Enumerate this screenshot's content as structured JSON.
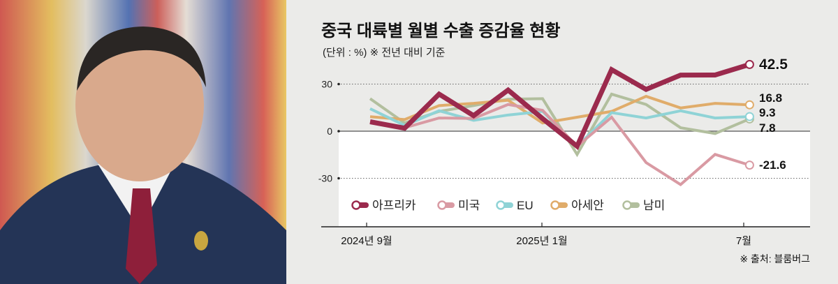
{
  "photo": {
    "alt": ""
  },
  "chart_data": {
    "type": "line",
    "title": "중국 대륙별 월별 수출 증감율 현황",
    "subtitle": "(단위 : %)  ※ 전년 대비 기준",
    "source": "※ 출처: 블룸버그",
    "x_tick_labels": [
      "2024년 9월",
      "2025년 1월",
      "7월"
    ],
    "y_ticks": [
      30,
      0,
      -30
    ],
    "y_tick_labels": [
      "30",
      "0",
      "-30"
    ],
    "ylim": [
      -40,
      45
    ],
    "grid": "dotted at ±30",
    "legend_position": "bottom-left",
    "series": [
      {
        "name": "아프리카",
        "color": "#9b2a4d",
        "end_label": "42.5",
        "values": [
          6,
          1.9,
          23.6,
          9.9,
          26.2,
          8,
          -9.6,
          39.2,
          26.6,
          35.7,
          35.8,
          42.5
        ]
      },
      {
        "name": "미국",
        "color": "#d99aa3",
        "end_label": "-21.6",
        "values": [
          6,
          2.2,
          8.4,
          8.1,
          17,
          13.3,
          -9.6,
          8.9,
          -20,
          -34,
          -14.8,
          -21.6
        ]
      },
      {
        "name": "EU",
        "color": "#8fd3d6",
        "end_label": "9.3",
        "values": [
          14.3,
          3.7,
          13,
          6.9,
          10.3,
          12.6,
          -9.6,
          11.8,
          8.4,
          13,
          8.4,
          9.3
        ]
      },
      {
        "name": "아세안",
        "color": "#e0ac6a",
        "end_label": "16.8",
        "values": [
          9.2,
          7.4,
          16.3,
          17.7,
          19.7,
          5.2,
          8.9,
          12.6,
          22.2,
          14.8,
          17.7,
          16.8
        ]
      },
      {
        "name": "남미",
        "color": "#b2bf9e",
        "end_label": "7.8",
        "values": [
          20.7,
          5.2,
          12.6,
          16.3,
          20.4,
          20.7,
          -14.8,
          23.6,
          17,
          2.2,
          -1.5,
          7.8
        ]
      }
    ]
  }
}
